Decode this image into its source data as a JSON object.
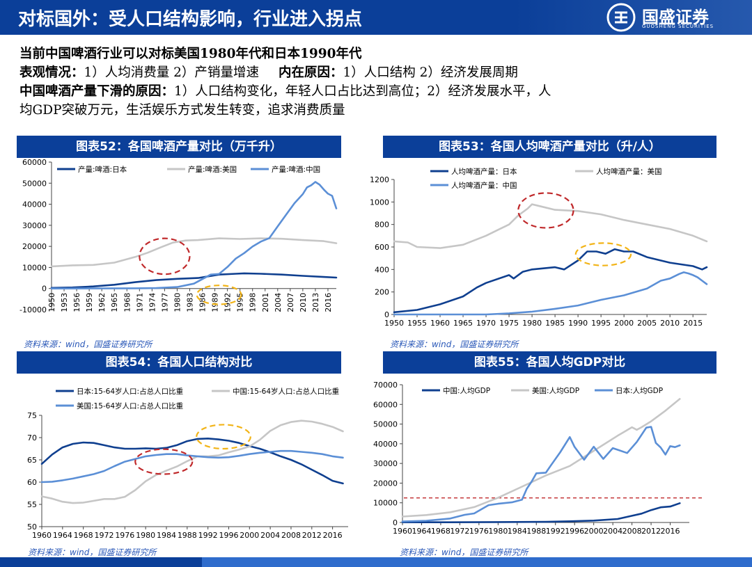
{
  "header": {
    "title": "对标国外：受人口结构影响，行业进入拐点",
    "logo_name": "国盛证券",
    "logo_en": "GUOSHENG SECURITIES"
  },
  "intro": {
    "line1": "当前中国啤酒行业可以对标美国1980年代和日本1990年代",
    "line2_label": "表观情况：",
    "line2_text": "1）人均消费量 2）产销量增速",
    "line2_label2": "内在原因：",
    "line2_text2": "1）人口结构 2）经济发展周期",
    "line3_label": "中国啤酒产量下滑的原因：",
    "line3_text": "1）人口结构变化，年轻人口占比达到高位；2）经济发展水平，人",
    "line4_text": "均GDP突破万元，生活娱乐方式发生转变，追求消费质量"
  },
  "source_text": "资料来源：wind，国盛证券研究所",
  "colors": {
    "dark_blue": "#0f3f8f",
    "light_blue": "#5b8fd6",
    "gray": "#c6c6c6",
    "red_dash": "#c0292b",
    "yellow_dash": "#f2b418",
    "title_bg": "#0b3f99"
  },
  "chart_data": [
    {
      "id": "c52",
      "title": "图表52：各国啤酒产量对比（万千升）",
      "type": "line",
      "ylim": [
        -10000,
        60000
      ],
      "yticks": [
        -10000,
        0,
        10000,
        20000,
        30000,
        40000,
        50000,
        60000
      ],
      "xlim": [
        1950,
        2018
      ],
      "xticks": [
        1950,
        1953,
        1956,
        1959,
        1962,
        1965,
        1968,
        1971,
        1974,
        1977,
        1980,
        1983,
        1986,
        1989,
        1992,
        1995,
        1998,
        2001,
        2004,
        2007,
        2010,
        2013,
        2016
      ],
      "xtick_rotation": -90,
      "series": [
        {
          "name": "产量:啤酒:日本",
          "color": "dark",
          "x": [
            1950,
            1955,
            1960,
            1965,
            1970,
            1975,
            1980,
            1985,
            1990,
            1994,
            1996,
            2000,
            2005,
            2010,
            2015,
            2018
          ],
          "y": [
            300,
            500,
            1000,
            1800,
            3000,
            4000,
            4600,
            5000,
            6600,
            7000,
            7200,
            7000,
            6600,
            6000,
            5500,
            5200
          ]
        },
        {
          "name": "产量:啤酒:美国",
          "color": "gray",
          "x": [
            1950,
            1955,
            1960,
            1965,
            1970,
            1973,
            1976,
            1979,
            1982,
            1985,
            1990,
            1995,
            2000,
            2005,
            2010,
            2015,
            2018
          ],
          "y": [
            10500,
            11000,
            11200,
            12300,
            15000,
            17000,
            19500,
            21800,
            22800,
            23000,
            23800,
            23500,
            23800,
            23600,
            23000,
            22500,
            21500
          ]
        },
        {
          "name": "产量:啤酒:中国",
          "color": "light",
          "x": [
            1950,
            1960,
            1970,
            1975,
            1980,
            1984,
            1988,
            1990,
            1992,
            1994,
            1996,
            1998,
            2000,
            2002,
            2004,
            2006,
            2008,
            2010,
            2011,
            2012,
            2013,
            2014,
            2015,
            2016,
            2017,
            2018
          ],
          "y": [
            0,
            50,
            100,
            200,
            700,
            2300,
            6600,
            6900,
            10200,
            14200,
            16800,
            19900,
            22300,
            23900,
            29500,
            35000,
            40500,
            44800,
            48000,
            49000,
            50600,
            49300,
            47000,
            45000,
            44000,
            38000
          ]
        }
      ],
      "annotations": [
        {
          "color": "red",
          "cx": 1977,
          "cy": 15300,
          "rx": 6,
          "ry": 8500
        },
        {
          "color": "yellow",
          "cx": 1990,
          "cy": -3000,
          "rx": 5.3,
          "ry": 4500
        }
      ]
    },
    {
      "id": "c53",
      "title": "图表53：各国人均啤酒产量对比（升/人）",
      "type": "line",
      "ylim": [
        0,
        1200
      ],
      "yticks": [
        0,
        200,
        400,
        600,
        800,
        1000,
        1200
      ],
      "xlim": [
        1950,
        2018
      ],
      "xticks": [
        1950,
        1955,
        1960,
        1965,
        1970,
        1975,
        1980,
        1985,
        1990,
        1995,
        2000,
        2005,
        2010,
        2015
      ],
      "series": [
        {
          "name": "人均啤酒产量：日本",
          "color": "dark",
          "x": [
            1950,
            1955,
            1960,
            1965,
            1968,
            1970,
            1975,
            1976,
            1978,
            1980,
            1985,
            1987,
            1990,
            1992,
            1994,
            1996,
            1998,
            2000,
            2002,
            2005,
            2010,
            2015,
            2017,
            2018
          ],
          "y": [
            20,
            40,
            90,
            160,
            240,
            280,
            350,
            320,
            380,
            400,
            420,
            400,
            480,
            560,
            560,
            540,
            580,
            560,
            560,
            510,
            460,
            430,
            400,
            420
          ]
        },
        {
          "name": "人均啤酒产量：美国",
          "color": "gray",
          "x": [
            1950,
            1953,
            1955,
            1960,
            1965,
            1970,
            1973,
            1975,
            1977,
            1979,
            1980,
            1982,
            1985,
            1990,
            1995,
            2000,
            2005,
            2010,
            2015,
            2018
          ],
          "y": [
            650,
            640,
            600,
            590,
            620,
            700,
            760,
            800,
            880,
            940,
            980,
            960,
            930,
            920,
            890,
            840,
            800,
            760,
            700,
            650
          ]
        },
        {
          "name": "人均啤酒产量：中国",
          "color": "light",
          "x": [
            1950,
            1970,
            1975,
            1980,
            1985,
            1990,
            1995,
            2000,
            2005,
            2008,
            2010,
            2012,
            2013,
            2014,
            2015,
            2016,
            2017,
            2018
          ],
          "y": [
            0,
            0,
            10,
            25,
            50,
            80,
            130,
            170,
            230,
            300,
            320,
            360,
            375,
            365,
            350,
            330,
            300,
            270
          ]
        }
      ],
      "annotations": [
        {
          "color": "red",
          "cx": 1983,
          "cy": 925,
          "rx": 6,
          "ry": 155
        },
        {
          "color": "yellow",
          "cx": 1995.5,
          "cy": 535,
          "rx": 6,
          "ry": 100
        }
      ]
    },
    {
      "id": "c54",
      "title": "图表54：各国人口结构对比",
      "type": "line",
      "ylim": [
        50,
        75
      ],
      "yticks": [
        50,
        55,
        60,
        65,
        70,
        75
      ],
      "xlim": [
        1960,
        2019
      ],
      "xticks": [
        1960,
        1964,
        1968,
        1972,
        1976,
        1980,
        1984,
        1988,
        1992,
        1996,
        2000,
        2004,
        2008,
        2012,
        2016
      ],
      "series": [
        {
          "name": "日本:15-64岁人口:占总人口比重",
          "color": "dark",
          "x": [
            1960,
            1962,
            1964,
            1966,
            1968,
            1970,
            1972,
            1974,
            1976,
            1978,
            1980,
            1982,
            1984,
            1986,
            1988,
            1990,
            1992,
            1994,
            1996,
            1998,
            2000,
            2002,
            2004,
            2006,
            2008,
            2010,
            2012,
            2014,
            2016,
            2018
          ],
          "y": [
            64.1,
            66.2,
            67.8,
            68.6,
            68.9,
            68.8,
            68.3,
            67.8,
            67.5,
            67.5,
            67.6,
            67.5,
            67.7,
            68.3,
            69.2,
            69.7,
            69.8,
            69.6,
            69.3,
            68.8,
            68.1,
            67.5,
            66.7,
            65.8,
            65,
            64,
            62.8,
            61.6,
            60.3,
            59.7
          ]
        },
        {
          "name": "中国:15-64岁人口:占总人口比重",
          "color": "gray",
          "x": [
            1960,
            1962,
            1964,
            1966,
            1968,
            1970,
            1972,
            1974,
            1976,
            1978,
            1980,
            1982,
            1984,
            1986,
            1988,
            1990,
            1992,
            1994,
            1996,
            1998,
            2000,
            2002,
            2004,
            2006,
            2008,
            2010,
            2012,
            2014,
            2016,
            2018
          ],
          "y": [
            56.8,
            56.3,
            55.6,
            55.3,
            55.4,
            55.8,
            56.2,
            56.2,
            56.7,
            58.2,
            60.2,
            61.6,
            62.6,
            63.5,
            64.7,
            65.8,
            65.8,
            66,
            66.7,
            67.3,
            68,
            69.5,
            71.5,
            72.8,
            73.5,
            73.8,
            73.6,
            73.1,
            72.4,
            71.4
          ]
        },
        {
          "name": "美国:15-64岁人口:占总人口比重",
          "color": "light",
          "x": [
            1960,
            1962,
            1964,
            1966,
            1968,
            1970,
            1972,
            1974,
            1976,
            1978,
            1980,
            1982,
            1984,
            1986,
            1988,
            1990,
            1992,
            1994,
            1996,
            1998,
            2000,
            2002,
            2004,
            2006,
            2008,
            2010,
            2012,
            2014,
            2016,
            2018
          ],
          "y": [
            60,
            60.1,
            60.4,
            60.8,
            61.3,
            61.8,
            62.5,
            63.6,
            64.6,
            65.2,
            65.8,
            66.1,
            66.3,
            66.3,
            66,
            65.8,
            65.6,
            65.5,
            65.6,
            65.9,
            66.3,
            66.6,
            66.8,
            67,
            67,
            66.8,
            66.6,
            66.3,
            65.8,
            65.5
          ]
        }
      ],
      "annotations": [
        {
          "color": "red",
          "cx": 1983.5,
          "cy": 64.6,
          "rx": 5.5,
          "ry": 2.8
        },
        {
          "color": "yellow",
          "cx": 1995,
          "cy": 70.2,
          "rx": 5.2,
          "ry": 2.7
        }
      ]
    },
    {
      "id": "c55",
      "title": "图表55：各国人均GDP对比",
      "type": "line",
      "ylim": [
        0,
        70000
      ],
      "yticks": [
        0,
        10000,
        20000,
        30000,
        40000,
        50000,
        60000,
        70000
      ],
      "xlim": [
        1960,
        2020
      ],
      "xticks": [
        1960,
        1964,
        1968,
        1972,
        1976,
        1980,
        1984,
        1988,
        1992,
        1996,
        2000,
        2004,
        2008,
        2012,
        2016
      ],
      "reference_line_y": 12500,
      "series": [
        {
          "name": "中国:人均GDP",
          "color": "dark",
          "x": [
            1960,
            1970,
            1980,
            1990,
            1995,
            2000,
            2005,
            2008,
            2010,
            2012,
            2014,
            2016,
            2018
          ],
          "y": [
            100,
            110,
            200,
            320,
            610,
            960,
            1750,
            3400,
            4500,
            6300,
            7700,
            8100,
            9800
          ]
        },
        {
          "name": "美国:人均GDP",
          "color": "gray",
          "x": [
            1960,
            1965,
            1970,
            1975,
            1980,
            1985,
            1990,
            1995,
            2000,
            2005,
            2008,
            2009,
            2010,
            2012,
            2015,
            2018
          ],
          "y": [
            3000,
            3800,
            5200,
            7800,
            12600,
            18200,
            23900,
            28700,
            36400,
            44100,
            48400,
            47100,
            48400,
            51400,
            56800,
            62800
          ]
        },
        {
          "name": "日本:人均GDP",
          "color": "light",
          "x": [
            1960,
            1965,
            1970,
            1973,
            1975,
            1978,
            1980,
            1983,
            1985,
            1986,
            1987,
            1988,
            1990,
            1991,
            1993,
            1995,
            1996,
            1998,
            2000,
            2002,
            2004,
            2007,
            2009,
            2010,
            2011,
            2012,
            2013,
            2014,
            2015,
            2016,
            2017,
            2018
          ],
          "y": [
            500,
            900,
            2000,
            3900,
            4600,
            8800,
            9500,
            10300,
            11600,
            17100,
            20700,
            25000,
            25300,
            28900,
            35700,
            43400,
            38400,
            31900,
            38500,
            32300,
            37800,
            35300,
            40900,
            44500,
            48200,
            48600,
            40400,
            38100,
            34500,
            38800,
            38300,
            39200
          ]
        }
      ],
      "annotations": []
    }
  ]
}
